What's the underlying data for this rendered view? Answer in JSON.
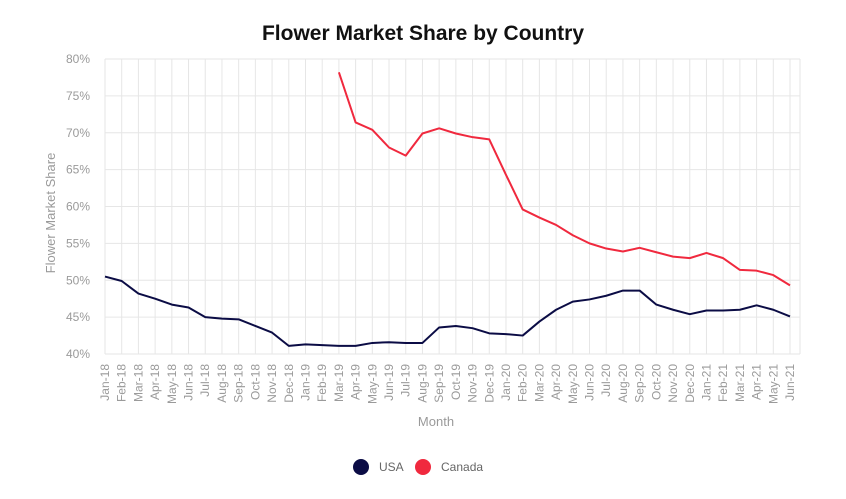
{
  "chart_data": {
    "type": "line",
    "title": "Flower Market Share by Country",
    "xlabel": "Month",
    "ylabel": "Flower Market Share",
    "ylim": [
      40,
      80
    ],
    "yticks": [
      "40%",
      "45%",
      "50%",
      "55%",
      "60%",
      "65%",
      "70%",
      "75%",
      "80%"
    ],
    "grid": true,
    "legend_position": "bottom",
    "categories": [
      "Jan-18",
      "Feb-18",
      "Mar-18",
      "Apr-18",
      "May-18",
      "Jun-18",
      "Jul-18",
      "Aug-18",
      "Sep-18",
      "Oct-18",
      "Nov-18",
      "Dec-18",
      "Jan-19",
      "Feb-19",
      "Mar-19",
      "Apr-19",
      "May-19",
      "Jun-19",
      "Jul-19",
      "Aug-19",
      "Sep-19",
      "Oct-19",
      "Nov-19",
      "Dec-19",
      "Jan-20",
      "Feb-20",
      "Mar-20",
      "Apr-20",
      "May-20",
      "Jun-20",
      "Jul-20",
      "Aug-20",
      "Sep-20",
      "Oct-20",
      "Nov-20",
      "Dec-20",
      "Jan-21",
      "Feb-21",
      "Mar-21",
      "Apr-21",
      "May-21",
      "Jun-21"
    ],
    "series": [
      {
        "name": "USA",
        "color": "#0b0c45",
        "values": [
          50.5,
          49.9,
          48.2,
          47.5,
          46.7,
          46.3,
          45.0,
          44.8,
          44.7,
          43.8,
          42.9,
          41.1,
          41.3,
          41.2,
          41.1,
          41.1,
          41.5,
          41.6,
          41.5,
          41.5,
          43.6,
          43.8,
          43.5,
          42.8,
          42.7,
          42.5,
          44.4,
          46.0,
          47.1,
          47.4,
          47.9,
          48.6,
          48.6,
          46.7,
          46.0,
          45.4,
          45.9,
          45.9,
          46.0,
          46.6,
          46.0,
          45.1
        ]
      },
      {
        "name": "Canada",
        "color": "#f0293e",
        "values": [
          null,
          null,
          null,
          null,
          null,
          null,
          null,
          null,
          null,
          null,
          null,
          null,
          null,
          null,
          78.2,
          71.4,
          70.4,
          68.0,
          66.9,
          69.9,
          70.6,
          69.9,
          69.4,
          69.1,
          64.3,
          59.6,
          58.5,
          57.5,
          56.1,
          55.0,
          54.3,
          53.9,
          54.4,
          53.8,
          53.2,
          53.0,
          53.7,
          53.0,
          51.4,
          51.3,
          50.7,
          49.3
        ]
      }
    ]
  }
}
